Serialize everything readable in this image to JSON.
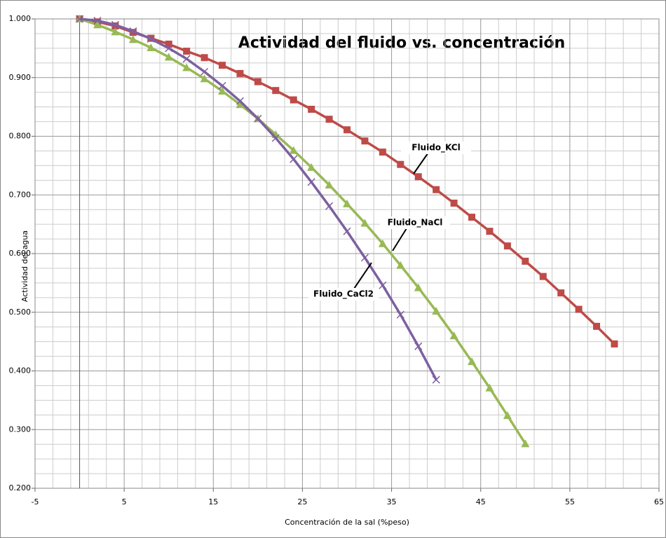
{
  "chart_data": {
    "type": "line",
    "title": "Actividad del fluido vs. concentración",
    "x_label": "Concentración de la sal (%peso)",
    "y_label": "Actividad del agua",
    "xlim": [
      -5,
      65
    ],
    "xticks": [
      -5,
      5,
      15,
      25,
      35,
      45,
      55,
      65
    ],
    "ylim": [
      0.2,
      1.0
    ],
    "yticks": [
      {
        "value": 0.2,
        "label": "0.200"
      },
      {
        "value": 0.3,
        "label": "0.300"
      },
      {
        "value": 0.4,
        "label": "0.400"
      },
      {
        "value": 0.5,
        "label": "0.500"
      },
      {
        "value": 0.6,
        "label": "0.600"
      },
      {
        "value": 0.7,
        "label": "0.700"
      },
      {
        "value": 0.8,
        "label": "0.800"
      },
      {
        "value": 0.9,
        "label": "0.900"
      },
      {
        "value": 1.0,
        "label": "1.000"
      }
    ],
    "grid": true,
    "x_minor_divisions": 5,
    "y_minor_divisions": 4,
    "series": [
      {
        "name": "Fluido_KCl",
        "color": "#be4b48",
        "marker": "square",
        "x": [
          0,
          2,
          4,
          6,
          8,
          10,
          12,
          14,
          16,
          18,
          20,
          22,
          24,
          26,
          28,
          30,
          32,
          34,
          36,
          38,
          40,
          42,
          44,
          46,
          48,
          50,
          52,
          54,
          56,
          58,
          60
        ],
        "values": [
          1.0,
          0.995,
          0.988,
          0.977,
          0.967,
          0.957,
          0.945,
          0.934,
          0.921,
          0.907,
          0.893,
          0.878,
          0.862,
          0.846,
          0.829,
          0.811,
          0.792,
          0.773,
          0.752,
          0.731,
          0.709,
          0.686,
          0.662,
          0.638,
          0.613,
          0.587,
          0.561,
          0.533,
          0.505,
          0.476,
          0.446
        ]
      },
      {
        "name": "Fluido_NaCl",
        "color": "#98b954",
        "marker": "triangle",
        "x": [
          0,
          2,
          4,
          6,
          8,
          10,
          12,
          14,
          16,
          18,
          20,
          22,
          24,
          26,
          28,
          30,
          32,
          34,
          36,
          38,
          40,
          42,
          44,
          46,
          48,
          50
        ],
        "values": [
          1.0,
          0.99,
          0.978,
          0.965,
          0.951,
          0.935,
          0.917,
          0.898,
          0.877,
          0.854,
          0.83,
          0.803,
          0.776,
          0.747,
          0.717,
          0.685,
          0.652,
          0.617,
          0.58,
          0.542,
          0.502,
          0.46,
          0.416,
          0.371,
          0.324,
          0.276
        ]
      },
      {
        "name": "Fluido_CaCl2",
        "color": "#7d60a0",
        "marker": "x",
        "x": [
          0,
          2,
          4,
          6,
          8,
          10,
          12,
          14,
          16,
          18,
          20,
          22,
          24,
          26,
          28,
          30,
          32,
          34,
          36,
          38,
          40
        ],
        "values": [
          1.0,
          0.997,
          0.99,
          0.979,
          0.966,
          0.95,
          0.932,
          0.91,
          0.886,
          0.86,
          0.83,
          0.797,
          0.761,
          0.722,
          0.681,
          0.638,
          0.593,
          0.546,
          0.496,
          0.442,
          0.385
        ]
      }
    ]
  }
}
